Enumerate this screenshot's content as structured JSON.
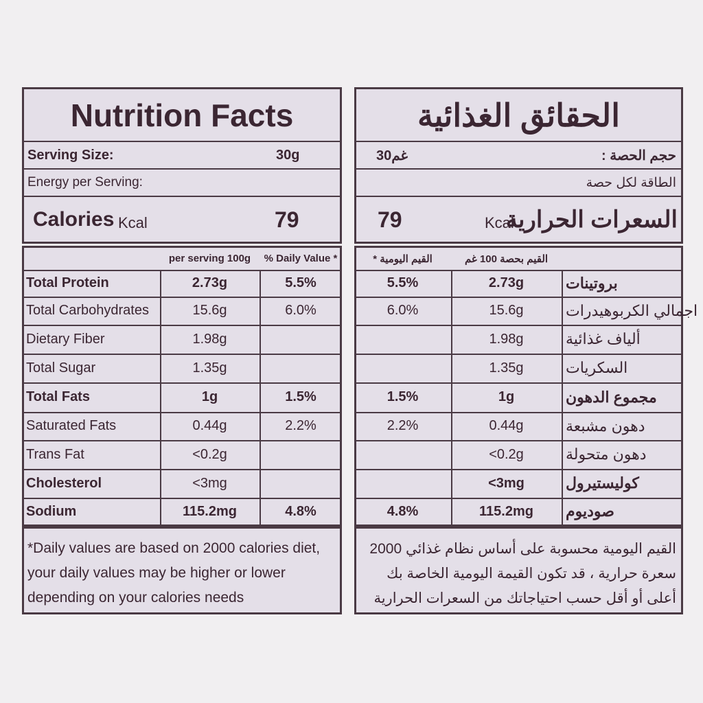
{
  "english": {
    "title": "Nutrition Facts",
    "serving_size_label": "Serving Size:",
    "serving_size": "30g",
    "energy_label": "Energy per Serving:",
    "calories_label": "Calories",
    "calories_unit": "Kcal",
    "calories": "79",
    "columns": [
      "per serving 100g",
      "% Daily Value *"
    ],
    "rows": [
      [
        "Total Protein",
        "2.73g",
        "5.5%"
      ],
      [
        "Total Carbohydrates",
        "15.6g",
        "6.0%"
      ],
      [
        "Dietary Fiber",
        "1.98g"
      ],
      [
        "Total Sugar",
        "1.35g"
      ],
      [
        "Total Fats",
        "1g",
        "1.5%"
      ],
      [
        "Saturated Fats",
        "0.44g",
        "2.2%"
      ],
      [
        "Trans Fat",
        "<0.2g"
      ],
      [
        "Cholesterol",
        "<3mg"
      ],
      [
        "Sodium",
        "115.2mg",
        "4.8%"
      ]
    ],
    "footnote": [
      "*Daily values are based on 2000 calories diet,",
      "your daily values may be higher or lower",
      "depending on your calories needs"
    ]
  },
  "arabic": {
    "title": "الحقائق الغذائية",
    "serving_size_label": "حجم الحصة :",
    "serving_size": "30غم",
    "energy_label": "الطاقة لكل حصة",
    "calories_label": "السعرات الحرارية",
    "calories_unit": "Kcal",
    "calories": "79",
    "columns": [
      "القيم بحصة 100 غم",
      "القيم اليومية *"
    ],
    "rows": [
      [
        "بروتينات",
        "2.73g",
        "5.5%"
      ],
      [
        "اجمالي الكربوهيدرات",
        "15.6g",
        "6.0%"
      ],
      [
        "ألياف غذائية",
        "1.98g"
      ],
      [
        "السكريات",
        "1.35g"
      ],
      [
        "مجموع الدهون",
        "1g",
        "1.5%"
      ],
      [
        "دهون مشبعة",
        "0.44g",
        "2.2%"
      ],
      [
        "دهون متحولة",
        "<0.2g"
      ],
      [
        "كوليستيرول",
        "<3mg"
      ],
      [
        "صوديوم",
        "115.2mg",
        "4.8%"
      ]
    ],
    "footnote": [
      "القيم اليومية محسوبة على أساس نظام غذائي 2000",
      "سعرة حرارية ، قد تكون القيمة اليومية الخاصة بك",
      "أعلى أو أقل حسب احتياجاتك من السعرات الحرارية"
    ]
  }
}
